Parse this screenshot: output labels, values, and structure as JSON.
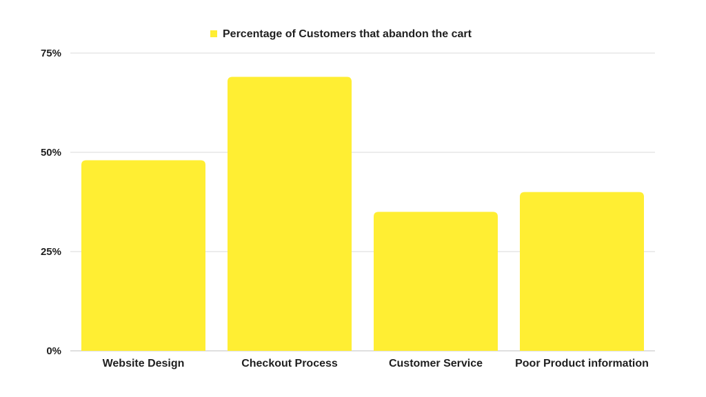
{
  "chart_data": {
    "type": "bar",
    "categories": [
      "Website Design",
      "Checkout Process",
      "Customer Service",
      "Poor Product information"
    ],
    "series": [
      {
        "name": "Percentage of Customers that abandon the cart",
        "values": [
          48,
          69,
          35,
          40
        ],
        "color": "#FFEE33"
      }
    ],
    "title": "",
    "xlabel": "",
    "ylabel": "",
    "ylim": [
      0,
      75
    ],
    "yticks": [
      0,
      25,
      50,
      75
    ],
    "ytick_labels": [
      "0%",
      "25%",
      "50%",
      "75%"
    ],
    "grid": true,
    "legend_position": "top-center"
  },
  "colors": {
    "bar": "#FFEE33",
    "grid": "#d9d9d9",
    "axis": "#bfbfbf",
    "text": "#1f1f1f"
  }
}
